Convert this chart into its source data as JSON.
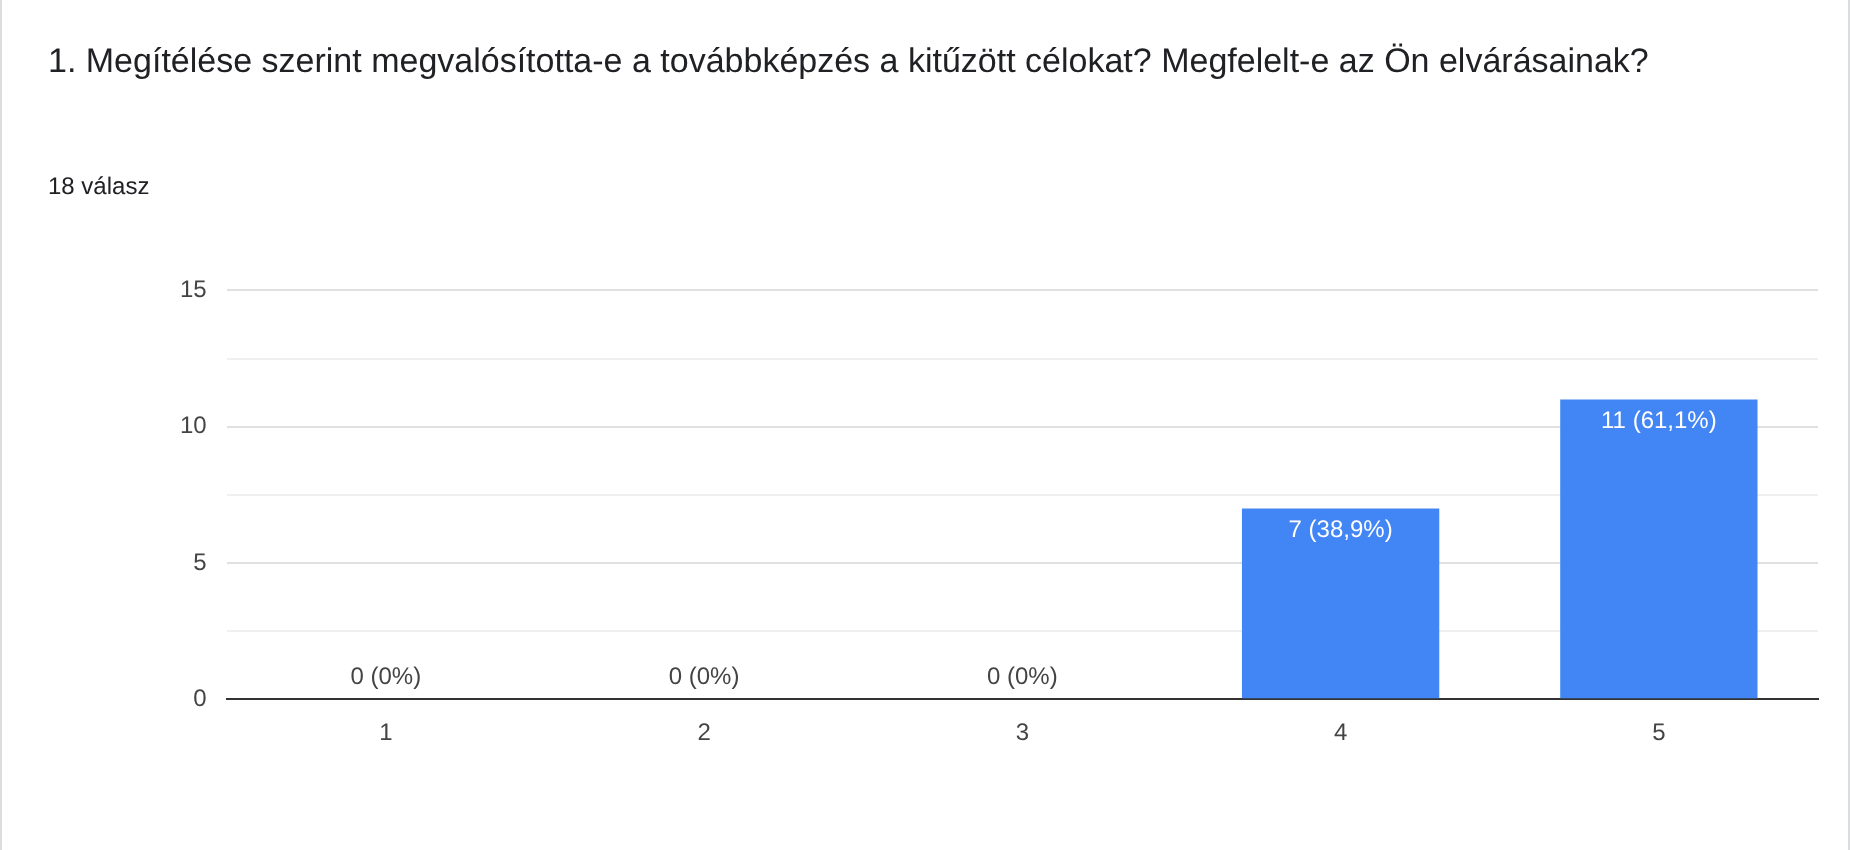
{
  "chart_data": {
    "type": "bar",
    "title": "1. Megítélése szerint megvalósította-e a továbbképzés a kitűzött célokat? Megfelelt-e az Ön elvárásainak?",
    "subtitle": "18 válasz",
    "categories": [
      "1",
      "2",
      "3",
      "4",
      "5"
    ],
    "values": [
      0,
      0,
      0,
      7,
      11
    ],
    "value_labels": [
      "0 (0%)",
      "0 (0%)",
      "0 (0%)",
      "7 (38,9%)",
      "11 (61,1%)"
    ],
    "color": "#4285f4",
    "ylim": [
      0,
      15
    ],
    "yticks": [
      0,
      {
        "value": 2.5,
        "label": null
      },
      5,
      {
        "value": 7.5,
        "label": null
      },
      10,
      {
        "value": 12.5,
        "label": null
      },
      15
    ],
    "grid": "y",
    "legend": false
  }
}
